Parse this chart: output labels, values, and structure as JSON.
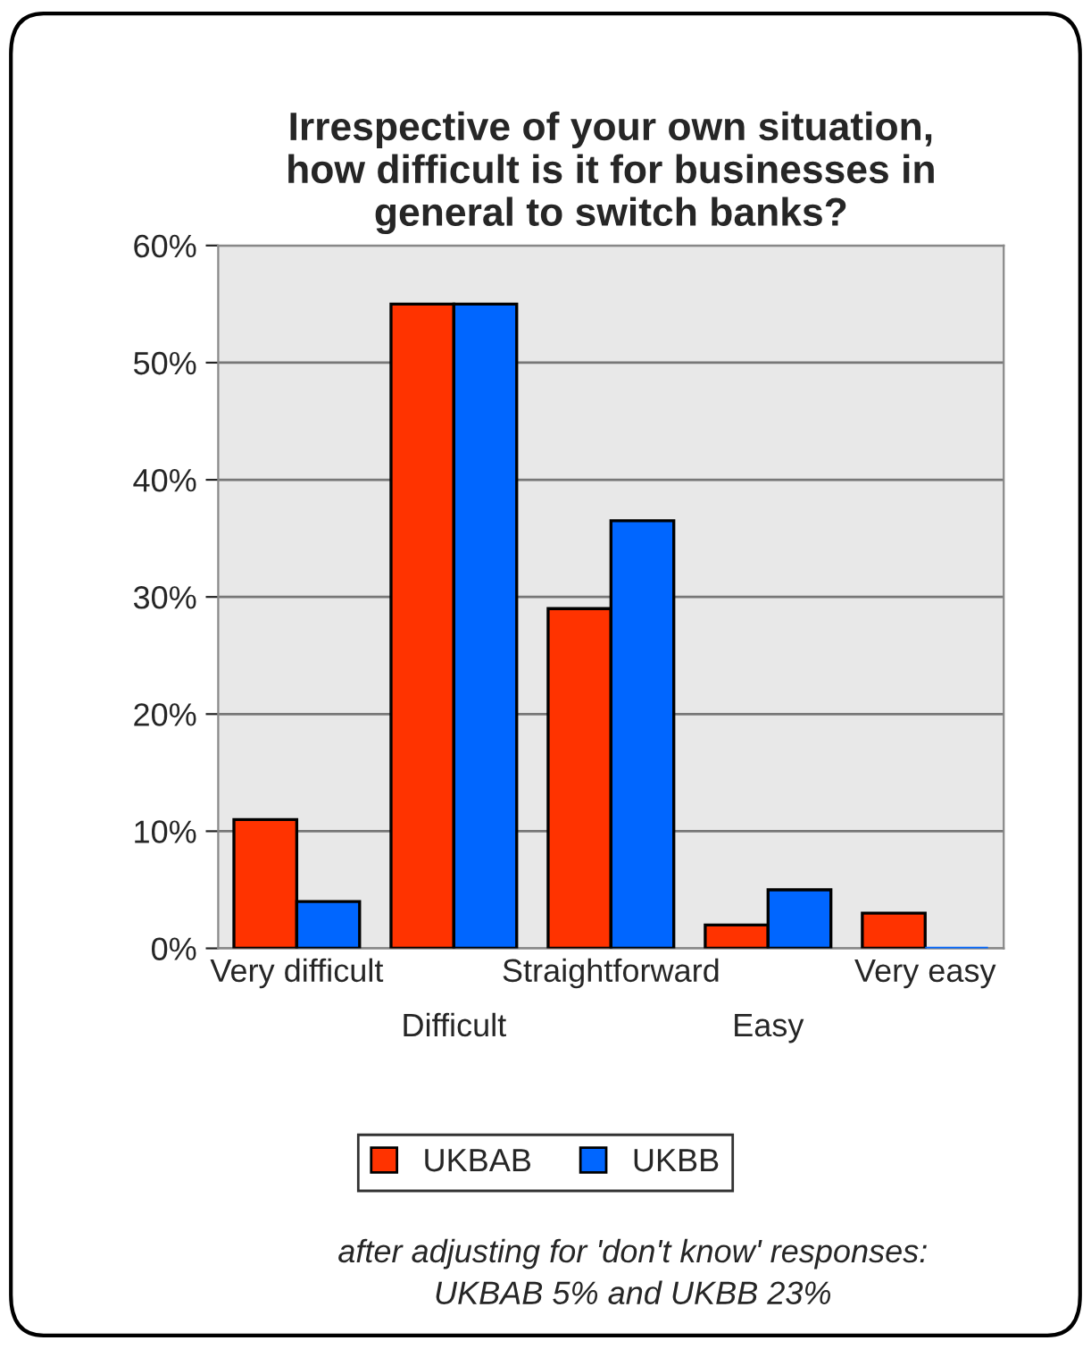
{
  "chart_data": {
    "type": "bar",
    "title": "Irrespective of your own situation,\nhow difficult is it for businesses in\ngeneral to switch banks?",
    "categories": [
      "Very difficult",
      "Difficult",
      "Straightforward",
      "Easy",
      "Very easy"
    ],
    "series": [
      {
        "name": "UKBAB",
        "color": "#ff3300",
        "values": [
          11,
          55,
          29,
          2,
          3
        ]
      },
      {
        "name": "UKBB",
        "color": "#0066ff",
        "values": [
          4,
          55,
          36.5,
          5,
          0
        ]
      }
    ],
    "ylim": [
      0,
      60
    ],
    "yticks": [
      {
        "value": 0,
        "label": "0%"
      },
      {
        "value": 10,
        "label": "10%"
      },
      {
        "value": 20,
        "label": "20%"
      },
      {
        "value": 30,
        "label": "30%"
      },
      {
        "value": 40,
        "label": "40%"
      },
      {
        "value": 50,
        "label": "50%"
      },
      {
        "value": 60,
        "label": "60%"
      }
    ],
    "grid": "y",
    "legend": "bottom",
    "annotations": [
      "after adjusting for 'don't know' responses:\nUKBAB 5% and UKBB 23%"
    ]
  }
}
